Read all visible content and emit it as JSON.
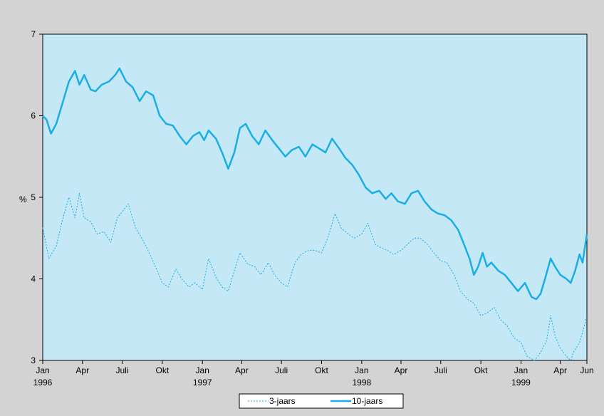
{
  "chart_data": {
    "type": "line",
    "title": "",
    "xlabel": "",
    "ylabel": "%",
    "ylim": [
      3,
      7
    ],
    "yticks": [
      3,
      4,
      5,
      6,
      7
    ],
    "xlim": [
      "1996-01-01",
      "1999-06-01"
    ],
    "grid": false,
    "legend_placement": "bottom-center",
    "x_ticks": [
      {
        "month": "Jan",
        "year": "1996"
      },
      {
        "month": "Apr",
        "year": ""
      },
      {
        "month": "Juli",
        "year": ""
      },
      {
        "month": "Okt",
        "year": ""
      },
      {
        "month": "Jan",
        "year": "1997"
      },
      {
        "month": "Apr",
        "year": ""
      },
      {
        "month": "Juli",
        "year": ""
      },
      {
        "month": "Okt",
        "year": ""
      },
      {
        "month": "Jan",
        "year": "1998"
      },
      {
        "month": "Apr",
        "year": ""
      },
      {
        "month": "Juli",
        "year": ""
      },
      {
        "month": "Okt",
        "year": ""
      },
      {
        "month": "Jan",
        "year": "1999"
      },
      {
        "month": "Apr",
        "year": ""
      },
      {
        "month": "Jun",
        "year": ""
      }
    ],
    "colors": {
      "plot_background": "#c5e8f7",
      "page_background": "#d3d3d3",
      "series_color": "#1aaee5"
    },
    "series": [
      {
        "name": "3-jaars",
        "style": "dashed",
        "points": [
          [
            "1996-01-01",
            4.63
          ],
          [
            "1996-01-15",
            4.25
          ],
          [
            "1996-02-01",
            4.4
          ],
          [
            "1996-02-15",
            4.72
          ],
          [
            "1996-03-01",
            5.0
          ],
          [
            "1996-03-15",
            4.75
          ],
          [
            "1996-03-25",
            5.05
          ],
          [
            "1996-04-05",
            4.75
          ],
          [
            "1996-04-20",
            4.7
          ],
          [
            "1996-05-05",
            4.55
          ],
          [
            "1996-05-20",
            4.58
          ],
          [
            "1996-06-05",
            4.45
          ],
          [
            "1996-06-20",
            4.75
          ],
          [
            "1996-07-05",
            4.85
          ],
          [
            "1996-07-15",
            4.92
          ],
          [
            "1996-08-01",
            4.62
          ],
          [
            "1996-08-15",
            4.5
          ],
          [
            "1996-09-01",
            4.32
          ],
          [
            "1996-09-15",
            4.15
          ],
          [
            "1996-10-01",
            3.95
          ],
          [
            "1996-10-15",
            3.9
          ],
          [
            "1996-11-01",
            4.12
          ],
          [
            "1996-11-15",
            4.0
          ],
          [
            "1996-12-01",
            3.9
          ],
          [
            "1996-12-15",
            3.95
          ],
          [
            "1997-01-01",
            3.87
          ],
          [
            "1997-01-15",
            4.25
          ],
          [
            "1997-02-01",
            4.02
          ],
          [
            "1997-02-15",
            3.9
          ],
          [
            "1997-03-01",
            3.85
          ],
          [
            "1997-03-15",
            4.1
          ],
          [
            "1997-03-28",
            4.32
          ],
          [
            "1997-04-15",
            4.18
          ],
          [
            "1997-05-01",
            4.15
          ],
          [
            "1997-05-15",
            4.05
          ],
          [
            "1997-06-01",
            4.2
          ],
          [
            "1997-06-15",
            4.05
          ],
          [
            "1997-07-01",
            3.95
          ],
          [
            "1997-07-15",
            3.9
          ],
          [
            "1997-08-01",
            4.2
          ],
          [
            "1997-08-15",
            4.3
          ],
          [
            "1997-09-01",
            4.35
          ],
          [
            "1997-09-15",
            4.35
          ],
          [
            "1997-10-01",
            4.32
          ],
          [
            "1997-10-15",
            4.5
          ],
          [
            "1997-11-01",
            4.8
          ],
          [
            "1997-11-15",
            4.62
          ],
          [
            "1997-12-01",
            4.55
          ],
          [
            "1997-12-15",
            4.5
          ],
          [
            "1998-01-01",
            4.55
          ],
          [
            "1998-01-15",
            4.68
          ],
          [
            "1998-02-01",
            4.42
          ],
          [
            "1998-02-15",
            4.38
          ],
          [
            "1998-03-01",
            4.35
          ],
          [
            "1998-03-15",
            4.3
          ],
          [
            "1998-04-01",
            4.35
          ],
          [
            "1998-04-15",
            4.42
          ],
          [
            "1998-05-01",
            4.5
          ],
          [
            "1998-05-15",
            4.5
          ],
          [
            "1998-06-01",
            4.42
          ],
          [
            "1998-06-15",
            4.32
          ],
          [
            "1998-07-01",
            4.22
          ],
          [
            "1998-07-15",
            4.2
          ],
          [
            "1998-08-01",
            4.05
          ],
          [
            "1998-08-15",
            3.85
          ],
          [
            "1998-09-01",
            3.75
          ],
          [
            "1998-09-15",
            3.7
          ],
          [
            "1998-10-01",
            3.55
          ],
          [
            "1998-10-15",
            3.58
          ],
          [
            "1998-11-01",
            3.65
          ],
          [
            "1998-11-15",
            3.5
          ],
          [
            "1998-12-01",
            3.42
          ],
          [
            "1998-12-15",
            3.28
          ],
          [
            "1999-01-01",
            3.22
          ],
          [
            "1999-01-15",
            3.05
          ],
          [
            "1999-02-01",
            3.0
          ],
          [
            "1999-02-15",
            3.1
          ],
          [
            "1999-03-01",
            3.25
          ],
          [
            "1999-03-10",
            3.55
          ],
          [
            "1999-03-20",
            3.3
          ],
          [
            "1999-04-01",
            3.15
          ],
          [
            "1999-04-15",
            3.05
          ],
          [
            "1999-04-25",
            3.0
          ],
          [
            "1999-05-01",
            3.1
          ],
          [
            "1999-05-15",
            3.22
          ],
          [
            "1999-05-25",
            3.4
          ],
          [
            "1999-06-01",
            3.55
          ]
        ]
      },
      {
        "name": "10-jaars",
        "style": "solid",
        "points": [
          [
            "1996-01-01",
            6.0
          ],
          [
            "1996-01-10",
            5.95
          ],
          [
            "1996-01-20",
            5.78
          ],
          [
            "1996-02-01",
            5.9
          ],
          [
            "1996-02-15",
            6.15
          ],
          [
            "1996-03-01",
            6.42
          ],
          [
            "1996-03-15",
            6.55
          ],
          [
            "1996-03-25",
            6.38
          ],
          [
            "1996-04-05",
            6.5
          ],
          [
            "1996-04-20",
            6.32
          ],
          [
            "1996-05-01",
            6.3
          ],
          [
            "1996-05-15",
            6.38
          ],
          [
            "1996-06-01",
            6.42
          ],
          [
            "1996-06-15",
            6.5
          ],
          [
            "1996-06-25",
            6.58
          ],
          [
            "1996-07-10",
            6.42
          ],
          [
            "1996-07-25",
            6.35
          ],
          [
            "1996-08-10",
            6.18
          ],
          [
            "1996-08-25",
            6.3
          ],
          [
            "1996-09-10",
            6.25
          ],
          [
            "1996-09-25",
            6.0
          ],
          [
            "1996-10-10",
            5.9
          ],
          [
            "1996-10-25",
            5.88
          ],
          [
            "1996-11-10",
            5.75
          ],
          [
            "1996-11-25",
            5.65
          ],
          [
            "1996-12-10",
            5.75
          ],
          [
            "1996-12-25",
            5.8
          ],
          [
            "1997-01-05",
            5.7
          ],
          [
            "1997-01-15",
            5.82
          ],
          [
            "1997-02-01",
            5.72
          ],
          [
            "1997-02-15",
            5.55
          ],
          [
            "1997-03-01",
            5.35
          ],
          [
            "1997-03-15",
            5.55
          ],
          [
            "1997-03-28",
            5.85
          ],
          [
            "1997-04-10",
            5.9
          ],
          [
            "1997-04-25",
            5.75
          ],
          [
            "1997-05-10",
            5.65
          ],
          [
            "1997-05-25",
            5.82
          ],
          [
            "1997-06-10",
            5.7
          ],
          [
            "1997-06-25",
            5.6
          ],
          [
            "1997-07-10",
            5.5
          ],
          [
            "1997-07-25",
            5.58
          ],
          [
            "1997-08-10",
            5.62
          ],
          [
            "1997-08-25",
            5.5
          ],
          [
            "1997-09-10",
            5.65
          ],
          [
            "1997-09-25",
            5.6
          ],
          [
            "1997-10-10",
            5.55
          ],
          [
            "1997-10-25",
            5.72
          ],
          [
            "1997-11-10",
            5.6
          ],
          [
            "1997-11-25",
            5.48
          ],
          [
            "1997-12-10",
            5.4
          ],
          [
            "1997-12-25",
            5.28
          ],
          [
            "1998-01-10",
            5.12
          ],
          [
            "1998-01-25",
            5.05
          ],
          [
            "1998-02-10",
            5.08
          ],
          [
            "1998-02-25",
            4.98
          ],
          [
            "1998-03-10",
            5.05
          ],
          [
            "1998-03-25",
            4.95
          ],
          [
            "1998-04-10",
            4.92
          ],
          [
            "1998-04-25",
            5.05
          ],
          [
            "1998-05-10",
            5.08
          ],
          [
            "1998-05-25",
            4.95
          ],
          [
            "1998-06-10",
            4.85
          ],
          [
            "1998-06-25",
            4.8
          ],
          [
            "1998-07-10",
            4.78
          ],
          [
            "1998-07-25",
            4.72
          ],
          [
            "1998-08-10",
            4.6
          ],
          [
            "1998-08-25",
            4.4
          ],
          [
            "1998-09-05",
            4.25
          ],
          [
            "1998-09-15",
            4.05
          ],
          [
            "1998-09-25",
            4.15
          ],
          [
            "1998-10-05",
            4.32
          ],
          [
            "1998-10-15",
            4.15
          ],
          [
            "1998-10-25",
            4.2
          ],
          [
            "1998-11-10",
            4.1
          ],
          [
            "1998-11-25",
            4.05
          ],
          [
            "1998-12-10",
            3.95
          ],
          [
            "1998-12-25",
            3.85
          ],
          [
            "1999-01-10",
            3.95
          ],
          [
            "1999-01-25",
            3.78
          ],
          [
            "1999-02-05",
            3.75
          ],
          [
            "1999-02-15",
            3.82
          ],
          [
            "1999-02-25",
            4.0
          ],
          [
            "1999-03-10",
            4.25
          ],
          [
            "1999-03-20",
            4.15
          ],
          [
            "1999-04-01",
            4.05
          ],
          [
            "1999-04-15",
            4.0
          ],
          [
            "1999-04-25",
            3.95
          ],
          [
            "1999-05-05",
            4.1
          ],
          [
            "1999-05-15",
            4.3
          ],
          [
            "1999-05-22",
            4.2
          ],
          [
            "1999-06-01",
            4.55
          ]
        ]
      }
    ]
  }
}
